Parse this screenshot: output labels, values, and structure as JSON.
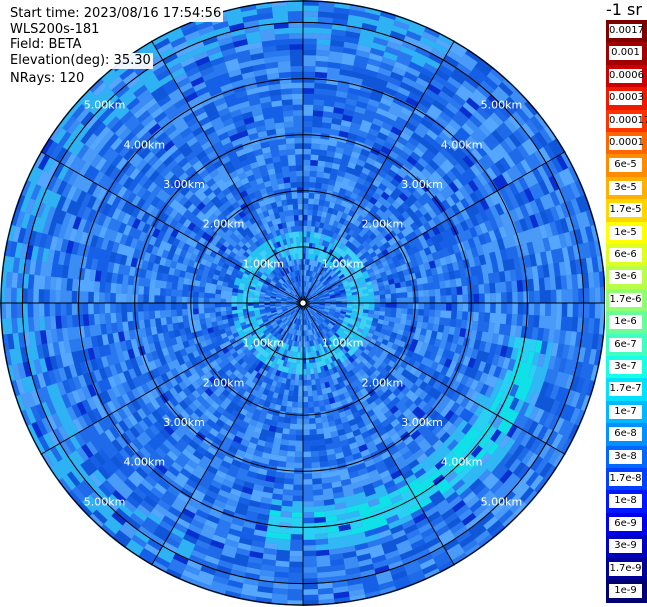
{
  "header": {
    "start_time": "Start time: 2023/08/16 17:54:56",
    "instrument": "WLS200s-181",
    "field": "Field: BETA",
    "elevation": "Elevation(deg): 35.30",
    "nrays": "NRays: 120"
  },
  "colorbar": {
    "title": "-1 sr",
    "labels": [
      "0.0017",
      "0.001",
      "0.0006",
      "0.0003",
      "0.00017",
      "0.0001",
      "6e-5",
      "3e-5",
      "1.7e-5",
      "1e-5",
      "6e-6",
      "3e-6",
      "1.7e-6",
      "1e-6",
      "6e-7",
      "3e-7",
      "1.7e-7",
      "1e-7",
      "6e-8",
      "3e-8",
      "1.7e-8",
      "1e-8",
      "6e-9",
      "3e-9",
      "1.7e-9",
      "1e-9"
    ],
    "colors": [
      "#7f0000",
      "#a00000",
      "#cc0000",
      "#ee1a00",
      "#ff3300",
      "#ff6600",
      "#ff8c00",
      "#ffb000",
      "#ffd500",
      "#ffff00",
      "#e0ff20",
      "#b8ff48",
      "#90ff70",
      "#68ff98",
      "#40ffbf",
      "#18ffe6",
      "#00e0ff",
      "#00b8ff",
      "#0090ff",
      "#0068ff",
      "#0040ff",
      "#0018ff",
      "#0000ea",
      "#0000c0",
      "#000098",
      "#000070"
    ]
  },
  "chart_data": {
    "type": "heatmap",
    "projection": "polar (PPI)",
    "field": "BETA",
    "elevation_deg": 35.3,
    "nrays": 120,
    "range_rings_km": [
      1.0,
      2.0,
      3.0,
      4.0,
      5.0
    ],
    "range_labels": [
      "1.00km",
      "2.00km",
      "3.00km",
      "4.00km",
      "5.00km"
    ],
    "max_range_km": 5.4,
    "spokes_deg": [
      0,
      30,
      60,
      90,
      120,
      150,
      180,
      210,
      240,
      270,
      300,
      330
    ],
    "color_scale": "log10 sr-1, 1e-9 to 0.0017",
    "typical_value_range": [
      "1e-8",
      "1.7e-7"
    ],
    "features": [
      {
        "description": "cyan ring near center",
        "range_km": [
          0.8,
          1.3
        ],
        "value": "1e-7"
      },
      {
        "description": "cyan arc band southeast",
        "range_km": [
          3.6,
          4.5
        ],
        "azimuth_deg": [
          100,
          190
        ],
        "value": "1e-7"
      }
    ],
    "grid": true
  }
}
